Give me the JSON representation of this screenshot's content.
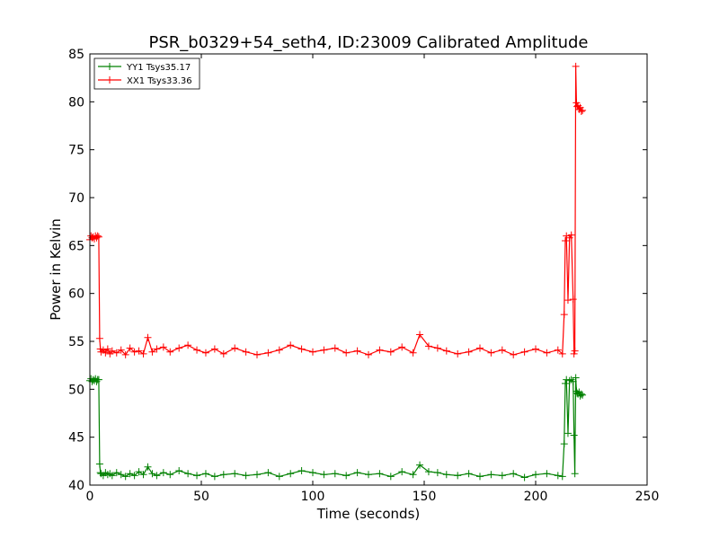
{
  "chart_data": {
    "type": "line",
    "title": "PSR_b0329+54_seth4, ID:23009 Calibrated Amplitude",
    "xlabel": "Time (seconds)",
    "ylabel": "Power in Kelvin",
    "xlim": [
      0,
      250
    ],
    "ylim": [
      40,
      85
    ],
    "xticks": [
      0,
      50,
      100,
      150,
      200,
      250
    ],
    "yticks": [
      40,
      45,
      50,
      55,
      60,
      65,
      70,
      75,
      80,
      85
    ],
    "grid": false,
    "legend_position": "top-left",
    "marker": "+",
    "series": [
      {
        "name": "YY1 Tsys35.17",
        "color": "#008000",
        "x": [
          0,
          0.5,
          1,
          1.5,
          2,
          2.5,
          3,
          3.5,
          4,
          4.4,
          4.7,
          5,
          6,
          7,
          8,
          9,
          10,
          12,
          14,
          16,
          18,
          20,
          22,
          24,
          26,
          28,
          30,
          33,
          36,
          40,
          44,
          48,
          52,
          56,
          60,
          65,
          70,
          75,
          80,
          85,
          90,
          95,
          100,
          105,
          110,
          115,
          120,
          125,
          130,
          135,
          140,
          145,
          148,
          152,
          156,
          160,
          165,
          170,
          175,
          180,
          185,
          190,
          195,
          200,
          205,
          210,
          212,
          212.8,
          213.3,
          213.8,
          214.5,
          215.2,
          216,
          216.8,
          217.2,
          217.6,
          218,
          218.3,
          218.6,
          219,
          219.5,
          220,
          220.5,
          221
        ],
        "y": [
          50.9,
          51.1,
          50.8,
          51.0,
          50.9,
          51.1,
          50.8,
          51.0,
          51.0,
          42.2,
          41.3,
          41.2,
          41.0,
          41.3,
          41.1,
          41.2,
          41.0,
          41.3,
          41.1,
          40.9,
          41.2,
          41.0,
          41.4,
          41.1,
          41.9,
          41.2,
          41.0,
          41.3,
          41.1,
          41.5,
          41.2,
          41.0,
          41.2,
          40.9,
          41.1,
          41.2,
          41.0,
          41.1,
          41.3,
          40.9,
          41.2,
          41.5,
          41.3,
          41.1,
          41.2,
          41.0,
          41.3,
          41.1,
          41.2,
          40.9,
          41.4,
          41.1,
          42.1,
          41.4,
          41.3,
          41.1,
          41.0,
          41.2,
          40.9,
          41.1,
          41.0,
          41.2,
          40.8,
          41.1,
          41.2,
          41.0,
          40.9,
          44.3,
          50.6,
          51.0,
          45.4,
          50.9,
          51.0,
          50.8,
          45.2,
          41.2,
          51.2,
          49.8,
          49.6,
          49.5,
          49.7,
          49.3,
          49.5,
          49.4
        ]
      },
      {
        "name": "XX1 Tsys33.36",
        "color": "#ff0000",
        "x": [
          0,
          0.5,
          1,
          1.5,
          2,
          2.5,
          3,
          3.5,
          4,
          4.4,
          4.7,
          5,
          6,
          7,
          8,
          9,
          10,
          12,
          14,
          16,
          18,
          20,
          22,
          24,
          26,
          28,
          30,
          33,
          36,
          40,
          44,
          48,
          52,
          56,
          60,
          65,
          70,
          75,
          80,
          85,
          90,
          95,
          100,
          105,
          110,
          115,
          120,
          125,
          130,
          135,
          140,
          145,
          148,
          152,
          156,
          160,
          165,
          170,
          175,
          180,
          185,
          190,
          195,
          200,
          205,
          210,
          212,
          212.8,
          213.3,
          213.8,
          214.5,
          215.2,
          216,
          216.8,
          217.2,
          217.6,
          218,
          218.3,
          218.6,
          219,
          219.5,
          220,
          220.5,
          221
        ],
        "y": [
          65.6,
          66.0,
          65.8,
          65.9,
          65.7,
          66.0,
          65.8,
          66.0,
          65.9,
          55.3,
          54.2,
          53.9,
          54.1,
          53.8,
          54.2,
          53.7,
          54.0,
          53.8,
          54.1,
          53.6,
          54.3,
          53.9,
          54.0,
          53.7,
          55.4,
          53.9,
          54.2,
          54.4,
          53.9,
          54.3,
          54.6,
          54.1,
          53.8,
          54.2,
          53.7,
          54.3,
          53.9,
          53.6,
          53.8,
          54.1,
          54.6,
          54.2,
          53.9,
          54.1,
          54.3,
          53.8,
          54.0,
          53.6,
          54.1,
          53.9,
          54.4,
          53.8,
          55.7,
          54.5,
          54.3,
          54.0,
          53.7,
          53.9,
          54.3,
          53.8,
          54.1,
          53.6,
          53.9,
          54.2,
          53.8,
          54.1,
          53.7,
          57.8,
          65.5,
          66.0,
          59.3,
          65.8,
          66.1,
          59.4,
          53.7,
          54.0,
          83.7,
          79.9,
          79.5,
          79.6,
          79.2,
          79.4,
          79.0,
          79.1
        ]
      }
    ]
  }
}
